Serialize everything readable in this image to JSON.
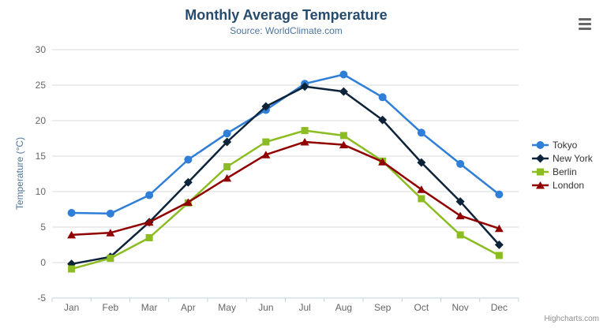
{
  "chart_data": {
    "type": "line",
    "title": "Monthly Average Temperature",
    "subtitle": "Source: WorldClimate.com",
    "categories": [
      "Jan",
      "Feb",
      "Mar",
      "Apr",
      "May",
      "Jun",
      "Jul",
      "Aug",
      "Sep",
      "Oct",
      "Nov",
      "Dec"
    ],
    "xlabel": "",
    "ylabel": "Temperature (°C)",
    "ylim": [
      -5,
      30
    ],
    "yticks": [
      -5,
      0,
      5,
      10,
      15,
      20,
      25,
      30
    ],
    "grid": true,
    "legend_position": "right",
    "series": [
      {
        "name": "Tokyo",
        "color": "#2f7ed8",
        "marker": "circle",
        "values": [
          7.0,
          6.9,
          9.5,
          14.5,
          18.2,
          21.5,
          25.2,
          26.5,
          23.3,
          18.3,
          13.9,
          9.6
        ]
      },
      {
        "name": "New York",
        "color": "#0d233a",
        "marker": "diamond",
        "values": [
          -0.2,
          0.8,
          5.7,
          11.3,
          17.0,
          22.0,
          24.8,
          24.1,
          20.1,
          14.1,
          8.6,
          2.5
        ]
      },
      {
        "name": "Berlin",
        "color": "#8bbc21",
        "marker": "square",
        "values": [
          -0.9,
          0.6,
          3.5,
          8.4,
          13.5,
          17.0,
          18.6,
          17.9,
          14.3,
          9.0,
          3.9,
          1.0
        ]
      },
      {
        "name": "London",
        "color": "#910000",
        "marker": "triangle",
        "values": [
          3.9,
          4.2,
          5.7,
          8.5,
          11.9,
          15.2,
          17.0,
          16.6,
          14.2,
          10.3,
          6.6,
          4.8
        ]
      }
    ],
    "palette": {
      "title_color": "#274b6d",
      "subtitle_color": "#4d759e",
      "axis_title_color": "#4d759e",
      "tick_label_color": "#666666",
      "grid_color": "#d8d8d8",
      "axis_line_color": "#c0d0e0",
      "legend_text_color": "#333333",
      "credits_color": "#909090"
    }
  },
  "credits": {
    "label": "Highcharts.com"
  }
}
